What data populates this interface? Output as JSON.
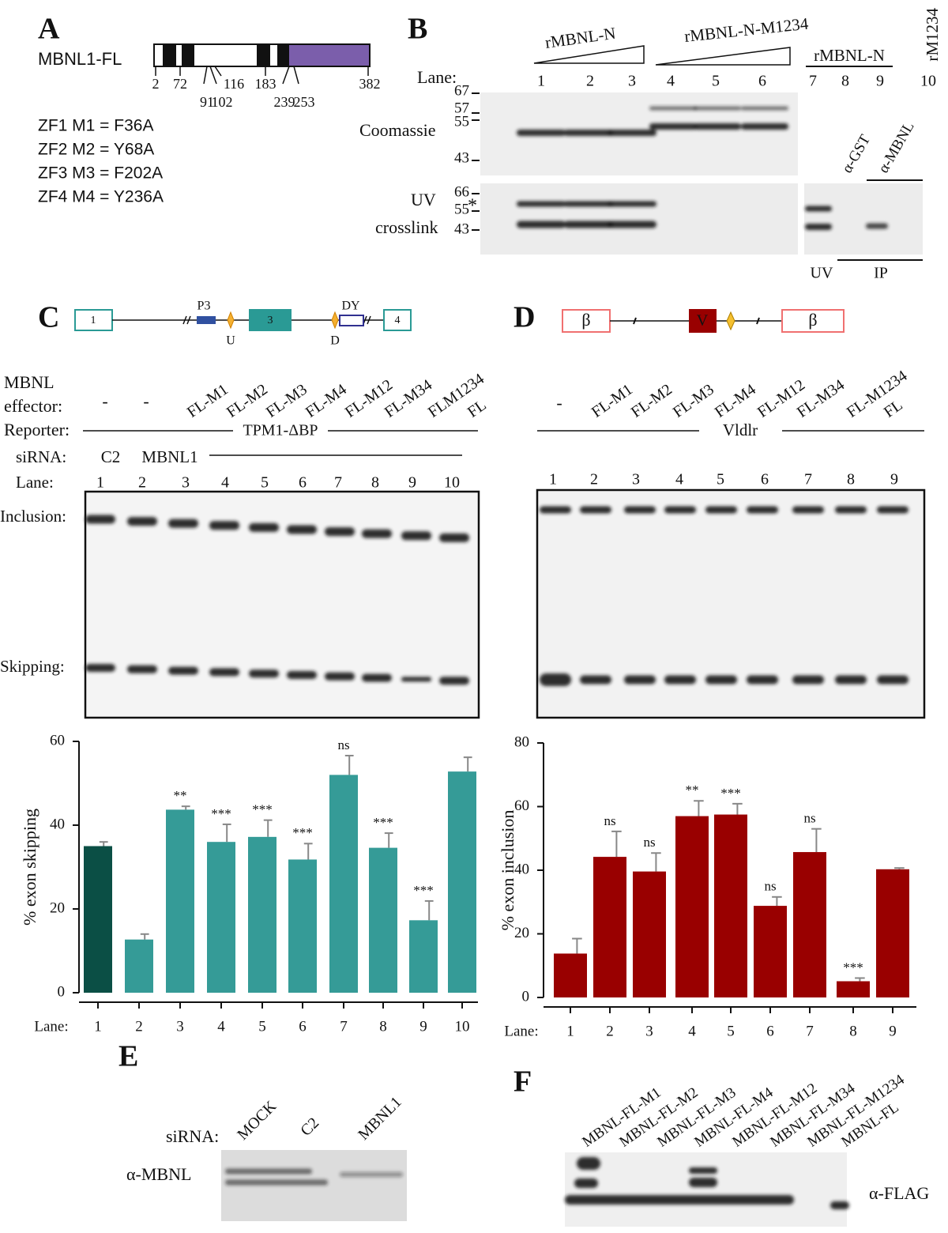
{
  "panel_a": {
    "label": "A",
    "protein": "MBNL1-FL",
    "positions": [
      2,
      72,
      91,
      102,
      116,
      183,
      239,
      253,
      382
    ],
    "mutations": [
      "ZF1 M1 =  F36A",
      "ZF2 M2 = Y68A",
      "ZF3 M3 =  F202A",
      "ZF4 M4 =  Y236A"
    ]
  },
  "panel_b": {
    "label": "B",
    "group1": "rMBNL-N",
    "group2": "rMBNL-N-M1234",
    "group3": "rMBNL-N",
    "group4": "rM1234",
    "lane_title": "Lane:",
    "lanes": [
      1,
      2,
      3,
      4,
      5,
      6,
      7,
      8,
      9,
      10
    ],
    "coomassie": "Coomassie",
    "coomassie_markers": [
      67,
      57,
      55,
      43
    ],
    "uv_title": "UV",
    "crosslink_title": "crosslink",
    "uv_markers": [
      66,
      55,
      43
    ],
    "asterisk": "*",
    "ip_antibodies": [
      "α-GST",
      "α-MBNL"
    ],
    "bottom_uv": "UV",
    "bottom_ip": "IP"
  },
  "panel_c": {
    "label": "C",
    "exons": [
      "1",
      "3",
      "4"
    ],
    "elements": [
      "P3",
      "U",
      "D",
      "DY"
    ],
    "effector_title_1": "MBNL",
    "effector_title_2": "effector:",
    "effectors": [
      "-",
      "-",
      "FL-M1",
      "FL-M2",
      "FL-M3",
      "FL-M4",
      "FL-M12",
      "FL-M34",
      "FLM1234",
      "FL"
    ],
    "reporter_title": "Reporter:",
    "reporter": "TPM1-ΔBP",
    "sirna_title": "siRNA:",
    "sirnas": [
      "C2",
      "MBNL1"
    ],
    "lane_title": "Lane:",
    "lanes": [
      1,
      2,
      3,
      4,
      5,
      6,
      7,
      8,
      9,
      10
    ],
    "inclusion": "Inclusion:",
    "skipping": "Skipping:"
  },
  "panel_d": {
    "label": "D",
    "exons": [
      "β",
      "V",
      "β"
    ],
    "effectors": [
      "-",
      "FL-M1",
      "FL-M2",
      "FL-M3",
      "FL-M4",
      "FL-M12",
      "FL-M34",
      "FL-M1234",
      "FL"
    ],
    "reporter": "Vldlr",
    "lanes": [
      1,
      2,
      3,
      4,
      5,
      6,
      7,
      8,
      9
    ]
  },
  "panel_e": {
    "label": "E",
    "sirna_title": "siRNA:",
    "lanes": [
      "MOCK",
      "C2",
      "MBNL1"
    ],
    "antibody": "α-MBNL"
  },
  "panel_f": {
    "label": "F",
    "lanes": [
      "MBNL-FL-M1",
      "MBNL-FL-M2",
      "MBNL-FL-M3",
      "MBNL-FL-M4",
      "MBNL-FL-M12",
      "MBNL-FL-M34",
      "MBNL-FL-M1234",
      "MBNL-FL"
    ],
    "antibody": "α-FLAG"
  },
  "chart_data": [
    {
      "type": "bar",
      "ylabel": "% exon skipping",
      "xlabel": "Lane:",
      "categories": [
        1,
        2,
        3,
        4,
        5,
        6,
        7,
        8,
        9,
        10
      ],
      "values": [
        35,
        12.7,
        43.7,
        36,
        37.2,
        31.8,
        52,
        34.6,
        17.3,
        52.8
      ],
      "errors": [
        1,
        1.3,
        0.8,
        4.2,
        4,
        3.8,
        4.6,
        3.5,
        4.6,
        3.4
      ],
      "significance": [
        null,
        null,
        "**",
        "***",
        "***",
        "***",
        "ns",
        "***",
        "***",
        null
      ],
      "colors": [
        "#0b4f45",
        "#359b97",
        "#359b97",
        "#359b97",
        "#359b97",
        "#359b97",
        "#359b97",
        "#359b97",
        "#359b97",
        "#359b97"
      ],
      "ylim": [
        0,
        60
      ],
      "yticks": [
        0,
        20,
        40,
        60
      ]
    },
    {
      "type": "bar",
      "ylabel": "% exon inclusion",
      "xlabel": "Lane:",
      "categories": [
        1,
        2,
        3,
        4,
        5,
        6,
        7,
        8,
        9
      ],
      "values": [
        13.8,
        44.2,
        39.6,
        57,
        57.5,
        28.8,
        45.7,
        5.1,
        40.3
      ],
      "errors": [
        4.7,
        8,
        5.8,
        4.8,
        3.4,
        2.8,
        7.3,
        1,
        0.4
      ],
      "significance": [
        null,
        "ns",
        "ns",
        "**",
        "***",
        "ns",
        "ns",
        "***",
        null
      ],
      "colors": [
        "#990000",
        "#990000",
        "#990000",
        "#990000",
        "#990000",
        "#990000",
        "#990000",
        "#990000",
        "#990000"
      ],
      "ylim": [
        0,
        80
      ],
      "yticks": [
        0,
        20,
        40,
        60,
        80
      ]
    }
  ]
}
